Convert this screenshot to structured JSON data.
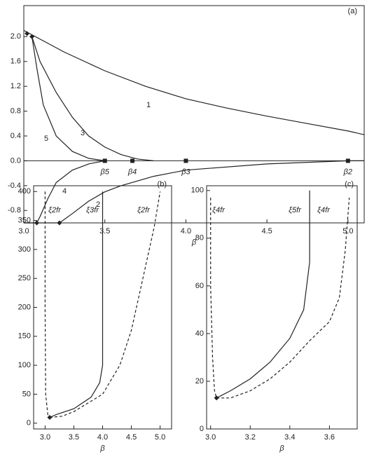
{
  "chart_data": [
    {
      "type": "line",
      "panel_label": "(a)",
      "xlabel": "β",
      "xlim": [
        3.0,
        5.1
      ],
      "ylim": [
        -1.0,
        2.5
      ],
      "xticks": [
        {
          "value": 3.0,
          "label": "3.0"
        },
        3.5,
        {
          "value": 4.0,
          "label": "4.0"
        },
        4.5,
        {
          "value": 5.0,
          "label": "5.0"
        }
      ],
      "yticks": [
        -0.8,
        -0.4,
        {
          "value": 0,
          "label": "0.0"
        },
        0.4,
        0.8,
        1.2,
        1.6,
        {
          "value": 2.0,
          "label": "2.0"
        }
      ],
      "series": [
        {
          "name": "1",
          "color": "#222",
          "dash": false,
          "x": [
            3.0,
            3.25,
            3.5,
            3.75,
            4.0,
            4.25,
            4.5,
            4.75,
            5.0,
            5.1
          ],
          "values": [
            2.1,
            1.75,
            1.45,
            1.2,
            1.0,
            0.85,
            0.72,
            0.6,
            0.48,
            0.42
          ]
        },
        {
          "name": "2",
          "color": "#222",
          "dash": false,
          "x": [
            3.0,
            3.22,
            3.3,
            3.4,
            3.5,
            3.6,
            3.8,
            4.0,
            4.5,
            5.0,
            5.1
          ],
          "values": [
            -1.0,
            -1.0,
            -0.85,
            -0.65,
            -0.5,
            -0.4,
            -0.25,
            -0.15,
            -0.05,
            0.0,
            0.0
          ]
        },
        {
          "name": "3",
          "color": "#222",
          "dash": false,
          "x": [
            3.05,
            3.1,
            3.2,
            3.3,
            3.4,
            3.5,
            3.6,
            3.7,
            3.8
          ],
          "values": [
            2.0,
            1.6,
            1.1,
            0.7,
            0.4,
            0.22,
            0.1,
            0.03,
            0.0
          ]
        },
        {
          "name": "4",
          "color": "#222",
          "dash": false,
          "x": [
            3.0,
            3.08,
            3.1,
            3.15,
            3.2,
            3.3,
            3.4,
            3.5
          ],
          "values": [
            -1.0,
            -1.0,
            -0.9,
            -0.6,
            -0.35,
            -0.15,
            -0.05,
            0.0
          ]
        },
        {
          "name": "5",
          "color": "#222",
          "dash": false,
          "x": [
            3.05,
            3.08,
            3.12,
            3.2,
            3.3,
            3.4,
            3.5
          ],
          "values": [
            2.0,
            1.5,
            0.9,
            0.4,
            0.15,
            0.04,
            0.0
          ]
        }
      ],
      "markers": {
        "x": [
          3.02,
          3.05,
          3.08,
          3.22
        ],
        "y": [
          2.05,
          2.0,
          -1.0,
          -1.0
        ]
      },
      "annotations": [
        {
          "text": "β5",
          "x": 3.5,
          "y": 0
        },
        {
          "text": "β4",
          "x": 3.67,
          "y": 0
        },
        {
          "text": "β3",
          "x": 4.0,
          "y": 0
        },
        {
          "text": "β2",
          "x": 5.0,
          "y": 0
        }
      ]
    },
    {
      "type": "line",
      "panel_label": "(b)",
      "xlabel": "β",
      "xlim": [
        2.8,
        5.2
      ],
      "ylim": [
        -10,
        410
      ],
      "xticks": [
        {
          "value": 3.0,
          "label": "3.0"
        },
        3.5,
        {
          "value": 4.0,
          "label": "4.0"
        },
        4.5,
        {
          "value": 5.0,
          "label": "5.0"
        }
      ],
      "yticks": [
        0,
        50,
        100,
        150,
        200,
        250,
        300,
        350,
        400
      ],
      "series": [
        {
          "name": "ξ2fr",
          "color": "#222",
          "dash": true,
          "x": [
            3.0,
            3.0,
            3.01,
            3.05,
            3.08
          ],
          "values": [
            400,
            200,
            50,
            12,
            10
          ]
        },
        {
          "name": "ξ3fr",
          "color": "#222",
          "dash": false,
          "x": [
            3.08,
            3.2,
            3.5,
            3.8,
            3.95,
            4.0,
            4.0
          ],
          "values": [
            10,
            15,
            25,
            45,
            70,
            100,
            400
          ]
        },
        {
          "name": "ξ2fr",
          "color": "#222",
          "dash": true,
          "x": [
            3.08,
            3.3,
            3.5,
            4.0,
            4.3,
            4.5,
            4.7,
            4.9,
            5.0
          ],
          "values": [
            10,
            12,
            20,
            50,
            100,
            160,
            250,
            340,
            400
          ]
        }
      ],
      "markers": {
        "x": [
          3.08
        ],
        "y": [
          10
        ]
      }
    },
    {
      "type": "line",
      "panel_label": "(c)",
      "xlabel": "β",
      "xlim": [
        2.98,
        3.74
      ],
      "ylim": [
        0,
        102
      ],
      "xticks": [
        {
          "value": 3.0,
          "label": "3.0"
        },
        3.2,
        3.4,
        3.6
      ],
      "yticks": [
        0,
        20,
        40,
        60,
        80,
        100
      ],
      "series": [
        {
          "name": "ξ4fr",
          "color": "#222",
          "dash": true,
          "x": [
            3.0,
            3.0,
            3.01,
            3.02,
            3.03
          ],
          "values": [
            97,
            60,
            30,
            16,
            13
          ]
        },
        {
          "name": "ξ5fr",
          "color": "#222",
          "dash": false,
          "x": [
            3.03,
            3.1,
            3.2,
            3.3,
            3.4,
            3.47,
            3.5,
            3.5
          ],
          "values": [
            13,
            16,
            21,
            28,
            38,
            50,
            70,
            100
          ]
        },
        {
          "name": "ξ4fr",
          "color": "#222",
          "dash": true,
          "x": [
            3.03,
            3.1,
            3.2,
            3.3,
            3.4,
            3.5,
            3.6,
            3.65,
            3.68,
            3.7
          ],
          "values": [
            13,
            13,
            16,
            21,
            28,
            37,
            45,
            55,
            75,
            97
          ]
        }
      ],
      "markers": {
        "x": [
          3.03
        ],
        "y": [
          13
        ]
      }
    }
  ]
}
